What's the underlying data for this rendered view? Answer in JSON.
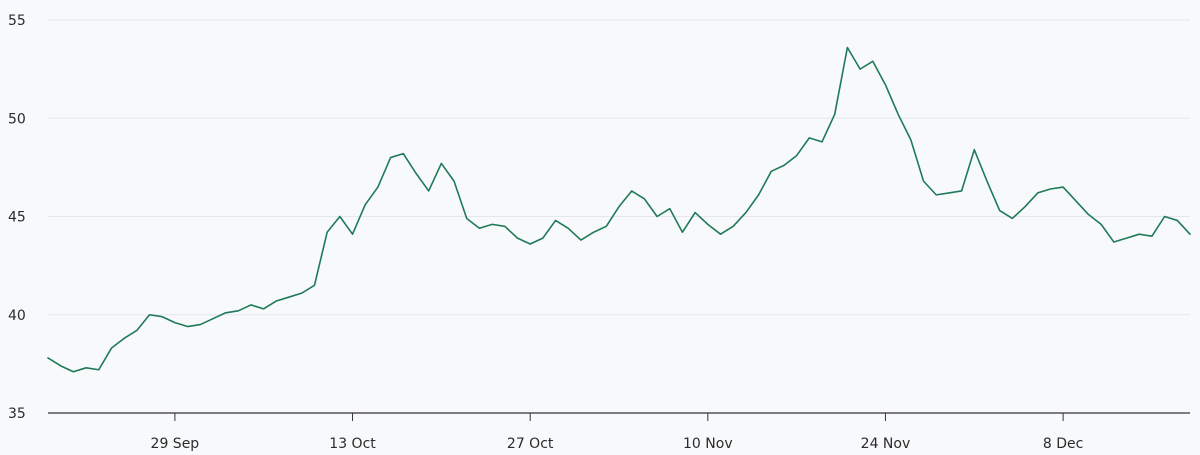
{
  "chart_data": {
    "type": "line",
    "title": "",
    "xlabel": "",
    "ylabel": "",
    "colors": {
      "line": "#1f7a5a",
      "background": "#f8f9fb",
      "grid": "#e5e7eb",
      "axis": "#333333",
      "text": "#2b2b2b"
    },
    "grid": true,
    "ylim": [
      35,
      55
    ],
    "xlim": [
      "2024-09-19",
      "2024-12-18"
    ],
    "y_ticks": [
      35,
      40,
      45,
      50,
      55
    ],
    "x_ticks": [
      {
        "date": "2024-09-29",
        "label": "29 Sep"
      },
      {
        "date": "2024-10-13",
        "label": "13 Oct"
      },
      {
        "date": "2024-10-27",
        "label": "27 Oct"
      },
      {
        "date": "2024-11-10",
        "label": "10 Nov"
      },
      {
        "date": "2024-11-24",
        "label": "24 Nov"
      },
      {
        "date": "2024-12-08",
        "label": "8 Dec"
      }
    ],
    "series": [
      {
        "x": [
          "2024-09-19",
          "2024-09-20",
          "2024-09-21",
          "2024-09-22",
          "2024-09-23",
          "2024-09-24",
          "2024-09-25",
          "2024-09-26",
          "2024-09-27",
          "2024-09-28",
          "2024-09-29",
          "2024-09-30",
          "2024-10-01",
          "2024-10-02",
          "2024-10-03",
          "2024-10-04",
          "2024-10-05",
          "2024-10-06",
          "2024-10-07",
          "2024-10-08",
          "2024-10-09",
          "2024-10-10",
          "2024-10-11",
          "2024-10-12",
          "2024-10-13",
          "2024-10-14",
          "2024-10-15",
          "2024-10-16",
          "2024-10-17",
          "2024-10-18",
          "2024-10-19",
          "2024-10-20",
          "2024-10-21",
          "2024-10-22",
          "2024-10-23",
          "2024-10-24",
          "2024-10-25",
          "2024-10-26",
          "2024-10-27",
          "2024-10-28",
          "2024-10-29",
          "2024-10-30",
          "2024-10-31",
          "2024-11-01",
          "2024-11-02",
          "2024-11-03",
          "2024-11-04",
          "2024-11-05",
          "2024-11-06",
          "2024-11-07",
          "2024-11-08",
          "2024-11-09",
          "2024-11-10",
          "2024-11-11",
          "2024-11-12",
          "2024-11-13",
          "2024-11-14",
          "2024-11-15",
          "2024-11-16",
          "2024-11-17",
          "2024-11-18",
          "2024-11-19",
          "2024-11-20",
          "2024-11-21",
          "2024-11-22",
          "2024-11-23",
          "2024-11-24",
          "2024-11-25",
          "2024-11-26",
          "2024-11-27",
          "2024-11-28",
          "2024-11-29",
          "2024-11-30",
          "2024-12-01",
          "2024-12-02",
          "2024-12-03",
          "2024-12-04",
          "2024-12-05",
          "2024-12-06",
          "2024-12-07",
          "2024-12-08",
          "2024-12-09",
          "2024-12-10",
          "2024-12-11",
          "2024-12-12",
          "2024-12-13",
          "2024-12-14",
          "2024-12-15",
          "2024-12-16",
          "2024-12-17",
          "2024-12-18"
        ],
        "y": [
          37.8,
          37.4,
          37.1,
          37.3,
          37.2,
          38.3,
          38.8,
          39.2,
          40.0,
          39.9,
          39.6,
          39.4,
          39.5,
          39.8,
          40.1,
          40.2,
          40.5,
          40.3,
          40.7,
          40.9,
          41.1,
          41.5,
          44.2,
          45.0,
          44.1,
          45.6,
          46.5,
          48.0,
          48.2,
          47.2,
          46.3,
          47.7,
          46.8,
          44.9,
          44.4,
          44.6,
          44.5,
          43.9,
          43.6,
          43.9,
          44.8,
          44.4,
          43.8,
          44.2,
          44.5,
          45.5,
          46.3,
          45.9,
          45.0,
          45.4,
          44.2,
          45.2,
          44.6,
          44.1,
          44.5,
          45.2,
          46.1,
          47.3,
          47.6,
          48.1,
          49.0,
          48.8,
          50.2,
          53.6,
          52.5,
          52.9,
          51.7,
          50.2,
          48.9,
          46.8,
          46.1,
          46.2,
          46.3,
          48.4,
          46.8,
          45.3,
          44.9,
          45.5,
          46.2,
          46.4,
          46.5,
          45.8,
          45.1,
          44.6,
          43.7,
          43.9,
          44.1,
          44.0,
          45.0,
          44.8,
          44.1
        ]
      }
    ]
  }
}
